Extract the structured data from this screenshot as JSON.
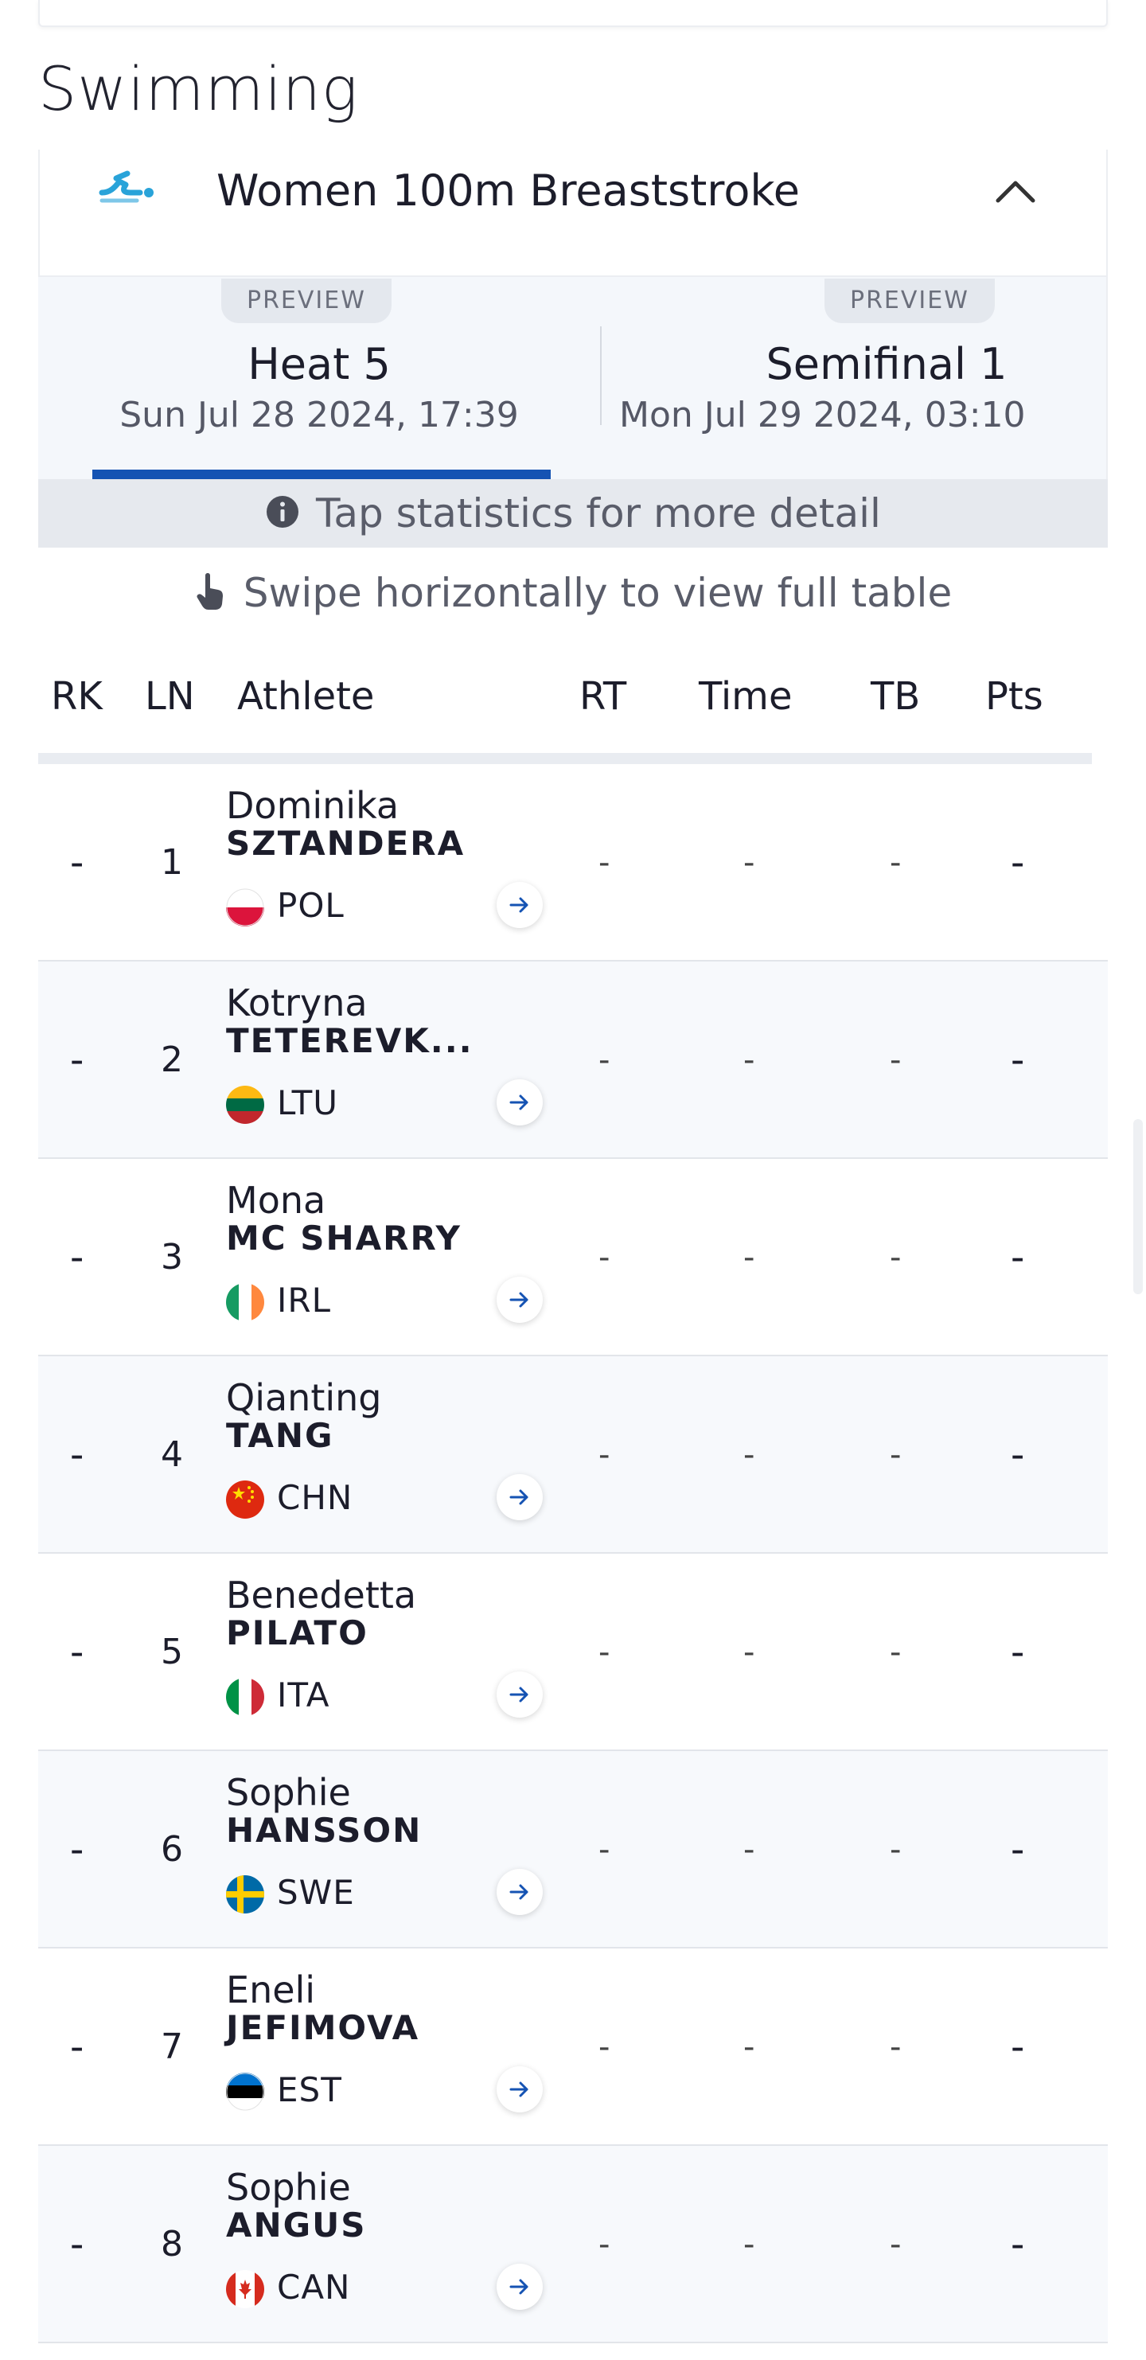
{
  "sport_title": "Swimming",
  "event": {
    "name": "Women 100m Breaststroke",
    "icon": "swimming-icon",
    "collapse_icon": "chevron-up-icon"
  },
  "tabs": [
    {
      "badge": "PREVIEW",
      "name": "Heat 5",
      "date": "Sun Jul 28 2024, 17:39",
      "active": true
    },
    {
      "badge": "PREVIEW",
      "name": "Semifinal 1",
      "date": "Mon Jul 29 2024, 03:10",
      "active": false
    }
  ],
  "info_bar": {
    "icon": "info-icon",
    "text": "Tap statistics for more detail"
  },
  "swipe_hint": {
    "icon": "hand-pointer-icon",
    "text": "Swipe horizontally to view full table"
  },
  "table": {
    "headers": {
      "rk": "RK",
      "ln": "LN",
      "athlete": "Athlete",
      "rt": "RT",
      "time": "Time",
      "tb": "TB",
      "pts": "Pts"
    },
    "rows": [
      {
        "rk": "-",
        "ln": "1",
        "first": "Dominika",
        "last": "SZTANDERA",
        "noc": "POL",
        "flag": "flag-poland",
        "rt": "-",
        "time": "-",
        "tb": "-",
        "pts": "-"
      },
      {
        "rk": "-",
        "ln": "2",
        "first": "Kotryna",
        "last": "TETEREVK...",
        "noc": "LTU",
        "flag": "flag-lithuania",
        "rt": "-",
        "time": "-",
        "tb": "-",
        "pts": "-"
      },
      {
        "rk": "-",
        "ln": "3",
        "first": "Mona",
        "last": "MC SHARRY",
        "noc": "IRL",
        "flag": "flag-ireland",
        "rt": "-",
        "time": "-",
        "tb": "-",
        "pts": "-"
      },
      {
        "rk": "-",
        "ln": "4",
        "first": "Qianting",
        "last": "TANG",
        "noc": "CHN",
        "flag": "flag-china",
        "rt": "-",
        "time": "-",
        "tb": "-",
        "pts": "-"
      },
      {
        "rk": "-",
        "ln": "5",
        "first": "Benedetta",
        "last": "PILATO",
        "noc": "ITA",
        "flag": "flag-italy",
        "rt": "-",
        "time": "-",
        "tb": "-",
        "pts": "-"
      },
      {
        "rk": "-",
        "ln": "6",
        "first": "Sophie",
        "last": "HANSSON",
        "noc": "SWE",
        "flag": "flag-sweden",
        "rt": "-",
        "time": "-",
        "tb": "-",
        "pts": "-"
      },
      {
        "rk": "-",
        "ln": "7",
        "first": "Eneli",
        "last": "JEFIMOVA",
        "noc": "EST",
        "flag": "flag-estonia",
        "rt": "-",
        "time": "-",
        "tb": "-",
        "pts": "-"
      },
      {
        "rk": "-",
        "ln": "8",
        "first": "Sophie",
        "last": "ANGUS",
        "noc": "CAN",
        "flag": "flag-canada",
        "rt": "-",
        "time": "-",
        "tb": "-",
        "pts": "-"
      }
    ]
  },
  "colors": {
    "accent": "#1553b3",
    "swim_icon": "#29a3d9",
    "text": "#1c1d2b",
    "muted": "#5a5d6a"
  }
}
